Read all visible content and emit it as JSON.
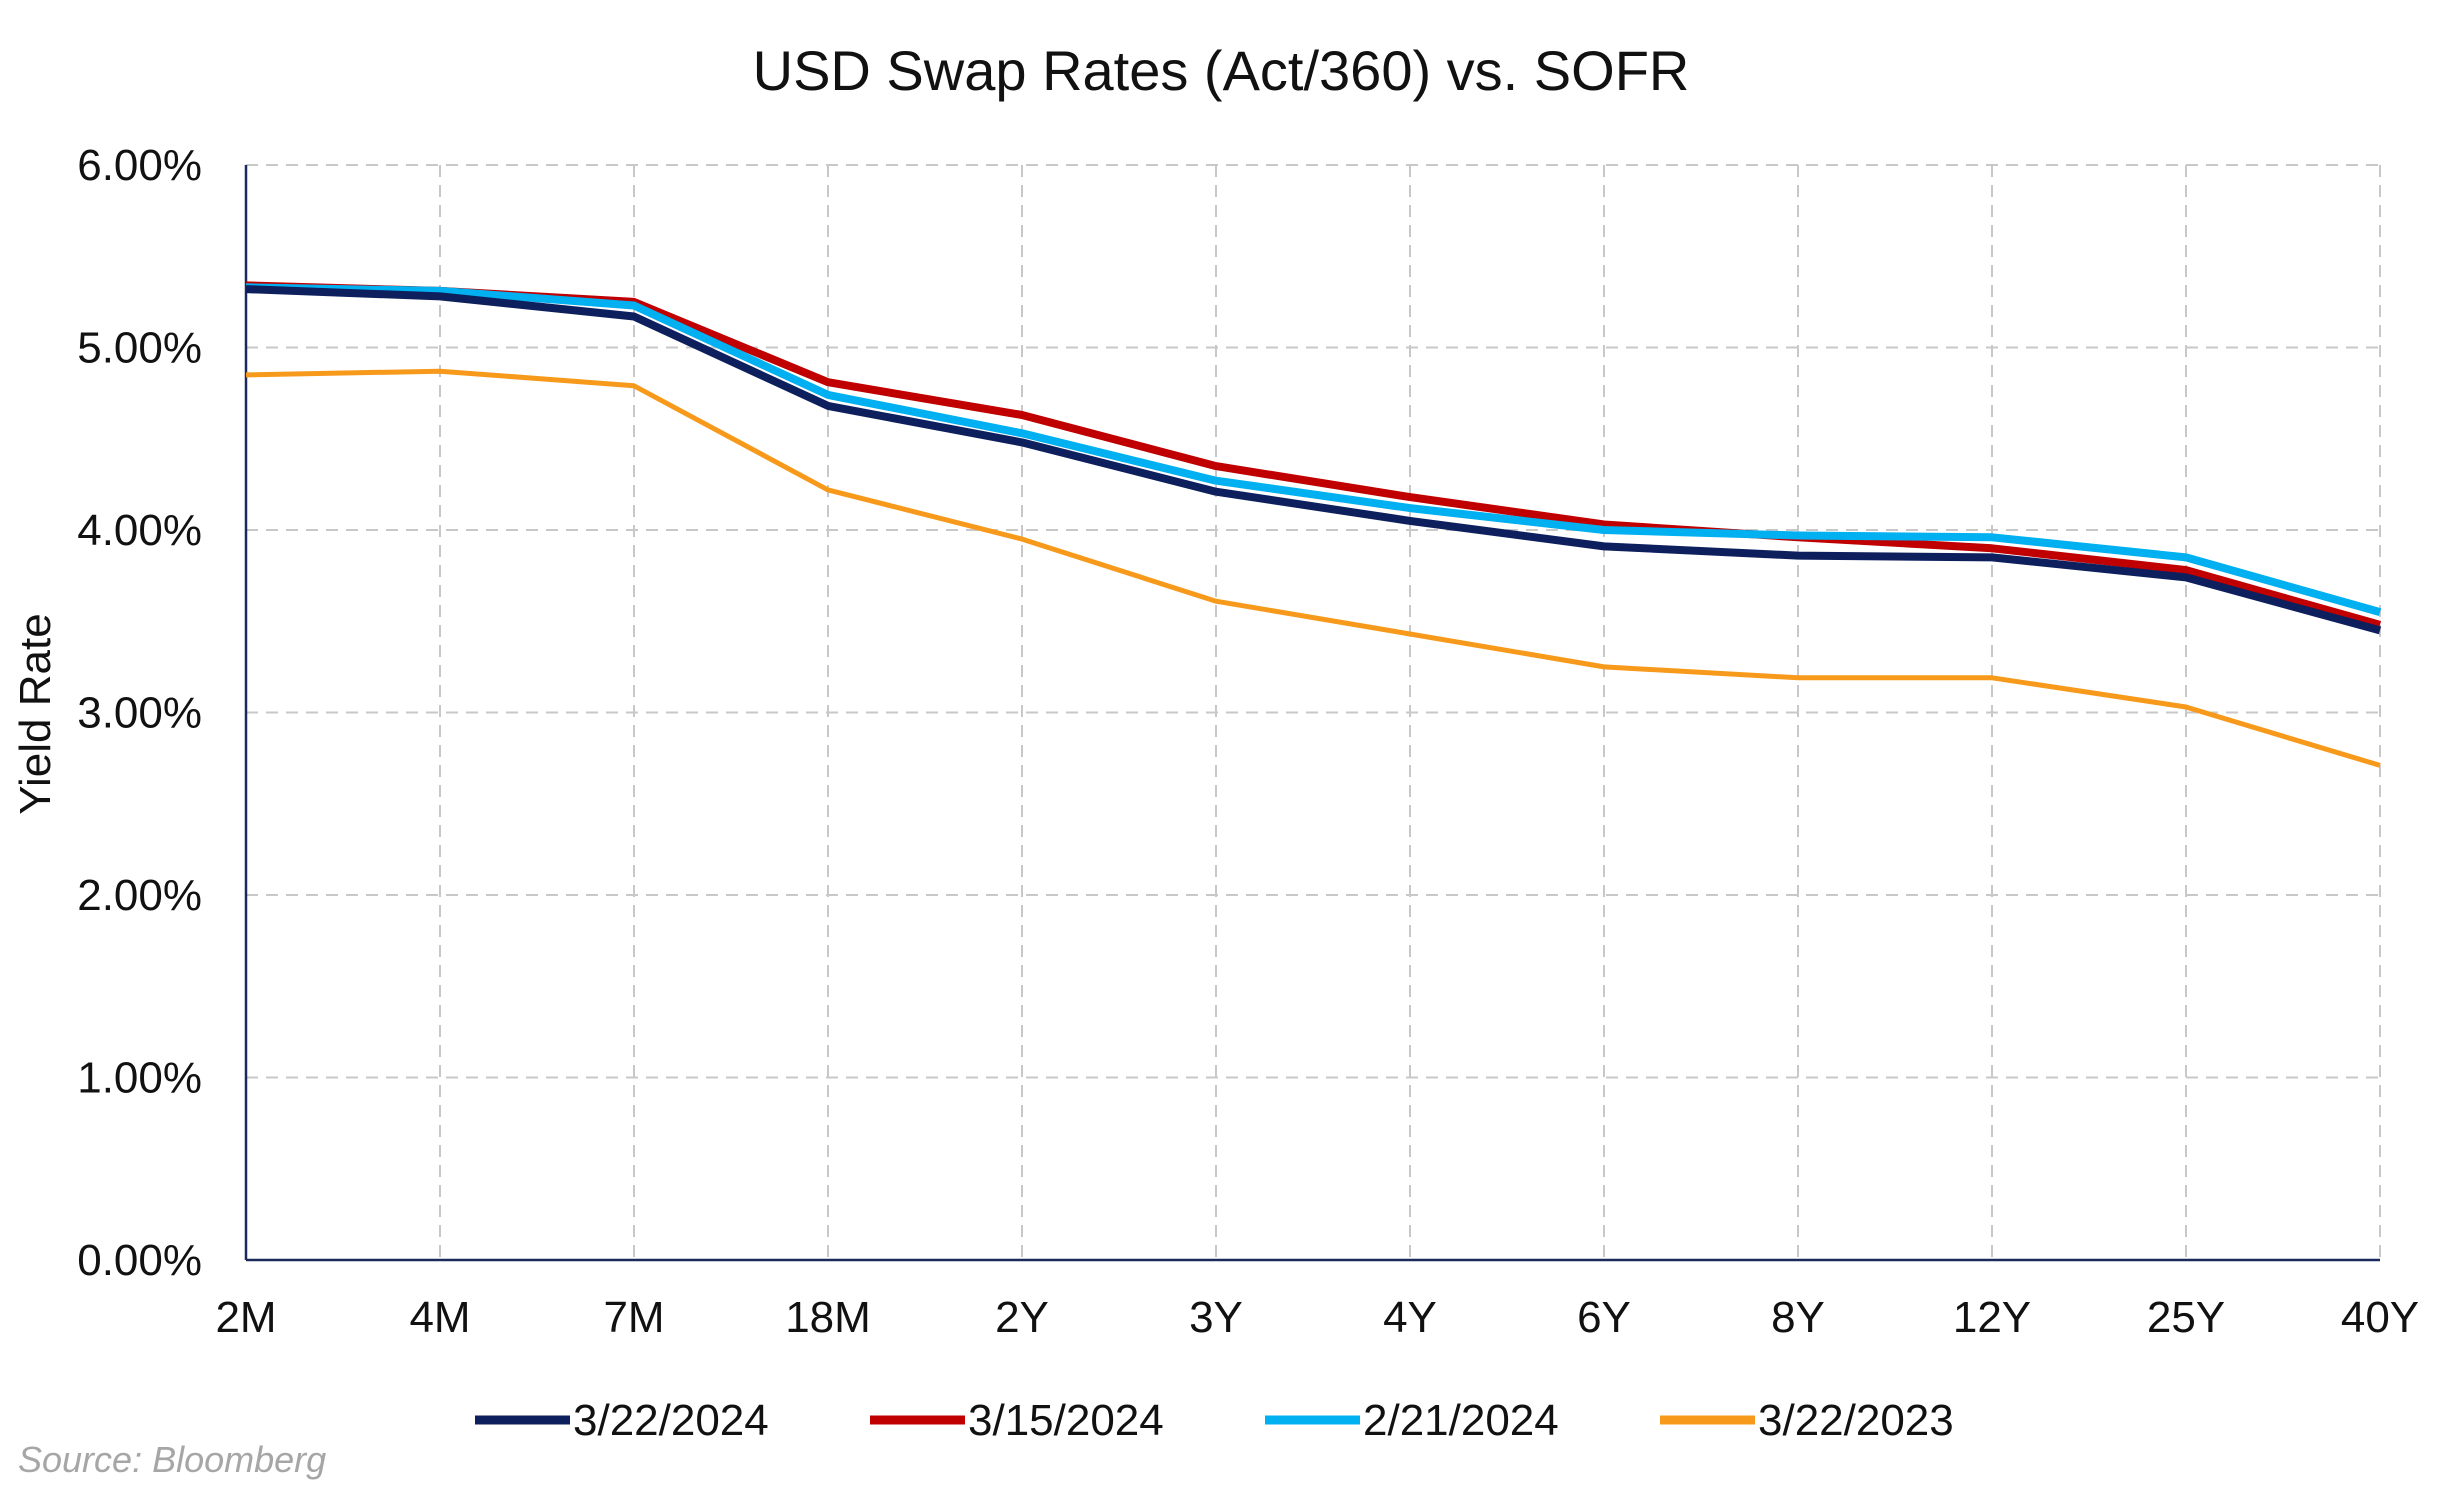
{
  "chart_data": {
    "type": "line",
    "title": "USD Swap Rates (Act/360) vs. SOFR",
    "xlabel": "",
    "ylabel": "Yield Rate",
    "categories": [
      "2M",
      "4M",
      "7M",
      "18M",
      "2Y",
      "3Y",
      "4Y",
      "6Y",
      "8Y",
      "12Y",
      "25Y",
      "40Y"
    ],
    "yticks": [
      "0.00%",
      "1.00%",
      "2.00%",
      "3.00%",
      "4.00%",
      "5.00%",
      "6.00%"
    ],
    "ylim": [
      0,
      6
    ],
    "grid": true,
    "legend_position": "bottom",
    "series": [
      {
        "name": "3/22/2024",
        "color": "#0d1f5c",
        "values": [
          5.32,
          5.28,
          5.17,
          4.68,
          4.48,
          4.21,
          4.05,
          3.91,
          3.86,
          3.85,
          3.74,
          3.45
        ]
      },
      {
        "name": "3/15/2024",
        "color": "#c00000",
        "values": [
          5.34,
          5.31,
          5.25,
          4.81,
          4.63,
          4.35,
          4.18,
          4.03,
          3.96,
          3.9,
          3.78,
          3.48
        ]
      },
      {
        "name": "2/21/2024",
        "color": "#00b0f0",
        "values": [
          5.33,
          5.31,
          5.23,
          4.74,
          4.53,
          4.27,
          4.12,
          4.0,
          3.97,
          3.96,
          3.85,
          3.55
        ]
      },
      {
        "name": "3/22/2023",
        "color": "#f79a1c",
        "values": [
          4.85,
          4.87,
          4.79,
          4.22,
          3.95,
          3.61,
          3.43,
          3.25,
          3.19,
          3.19,
          3.03,
          2.71
        ]
      }
    ],
    "source": "Source: Bloomberg"
  }
}
